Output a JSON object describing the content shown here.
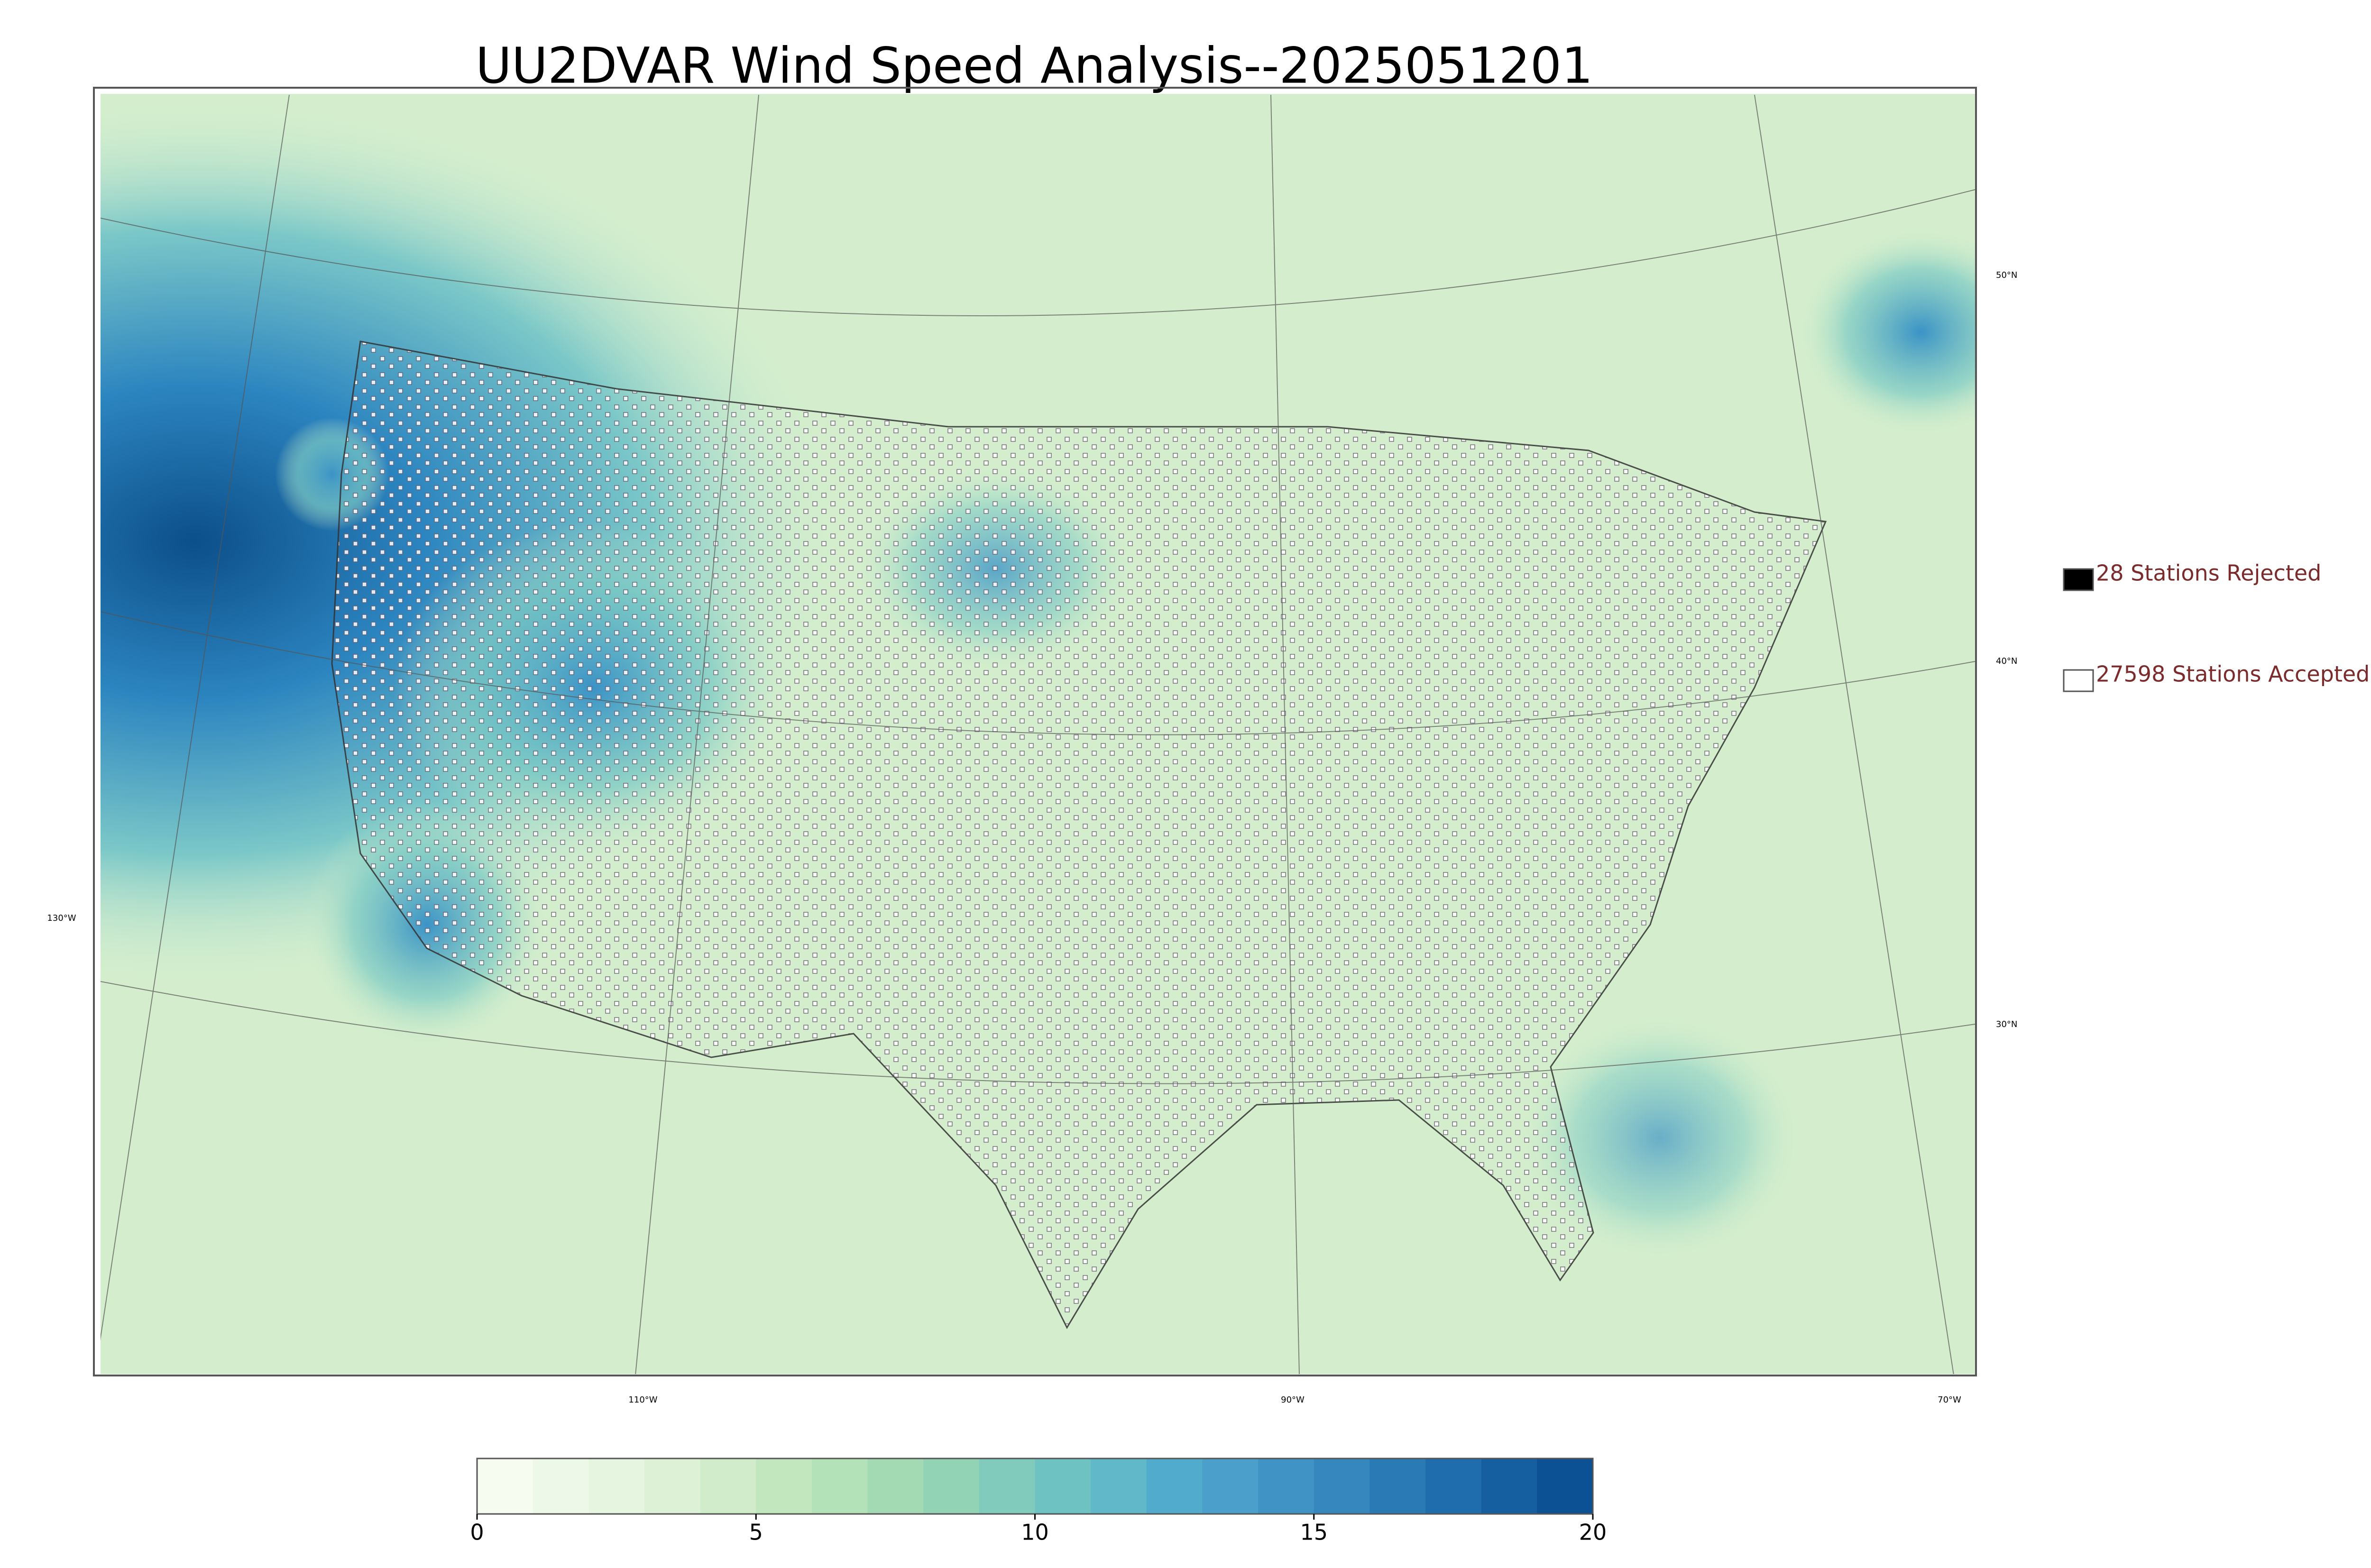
{
  "title": "UU2DVAR Wind Speed Analysis--2025051201",
  "legend": [
    {
      "label": "28 Stations Rejected",
      "color": "#000000"
    },
    {
      "label": "27598 Stations Accepted",
      "color": "#ffffff"
    }
  ],
  "latitude_labels": [
    "50°N",
    "40°N",
    "30°N"
  ],
  "longitude_labels": [
    "130°W",
    "110°W",
    "90°W",
    "70°W"
  ],
  "colorbar": {
    "lim": [
      0,
      20
    ],
    "ticks": [
      0,
      5,
      10,
      15,
      20
    ],
    "colors": [
      "#f7fcf0",
      "#eef8e8",
      "#e5f5e0",
      "#dcf1d6",
      "#d0ecca",
      "#c2e7bf",
      "#b3e1b8",
      "#a3dab4",
      "#92d3b6",
      "#80cbbc",
      "#6fc2c2",
      "#60b8c9",
      "#51abcc",
      "#4aa0ca",
      "#3f94c5",
      "#3587be",
      "#2a7ab6",
      "#1f6dac",
      "#155fa0",
      "#0c5194"
    ]
  }
}
